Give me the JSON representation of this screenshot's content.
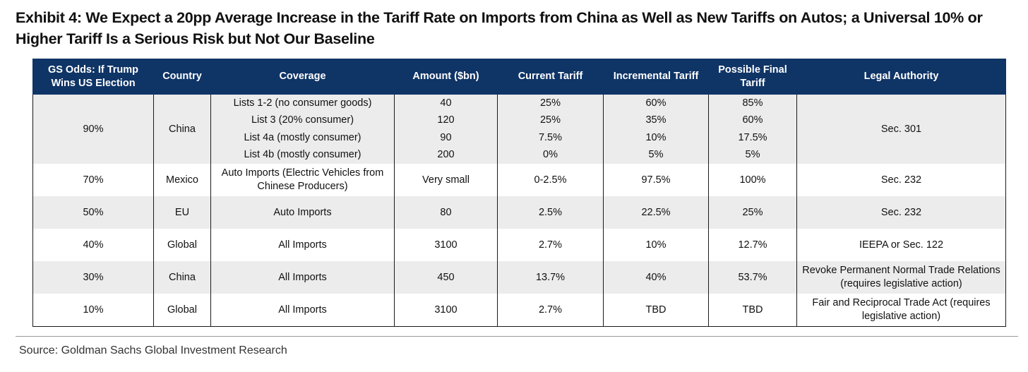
{
  "title": "Exhibit 4: We Expect a 20pp Average Increase in the Tariff Rate on Imports from China as Well as New Tariffs on Autos; a Universal 10% or Higher Tariff Is a Serious Risk but Not Our Baseline",
  "headers": {
    "odds": "GS Odds: If Trump Wins US Election",
    "country": "Country",
    "coverage": "Coverage",
    "amount": "Amount ($bn)",
    "current": "Current Tariff",
    "incremental": "Incremental Tariff",
    "final": "Possible Final Tariff",
    "legal": "Legal Authority"
  },
  "china_group": {
    "odds": "90%",
    "country": "China",
    "legal": "Sec. 301",
    "lists": [
      {
        "coverage": "Lists 1-2 (no consumer goods)",
        "amount": "40",
        "current": "25%",
        "incremental": "60%",
        "final": "85%"
      },
      {
        "coverage": "List 3 (20% consumer)",
        "amount": "120",
        "current": "25%",
        "incremental": "35%",
        "final": "60%"
      },
      {
        "coverage": "List 4a (mostly consumer)",
        "amount": "90",
        "current": "7.5%",
        "incremental": "10%",
        "final": "17.5%"
      },
      {
        "coverage": "List 4b (mostly consumer)",
        "amount": "200",
        "current": "0%",
        "incremental": "5%",
        "final": "5%"
      }
    ]
  },
  "rows": [
    {
      "odds": "70%",
      "country": "Mexico",
      "coverage": "Auto Imports (Electric Vehicles from Chinese Producers)",
      "amount": "Very small",
      "current": "0-2.5%",
      "incremental": "97.5%",
      "final": "100%",
      "legal": "Sec. 232"
    },
    {
      "odds": "50%",
      "country": "EU",
      "coverage": "Auto Imports",
      "amount": "80",
      "current": "2.5%",
      "incremental": "22.5%",
      "final": "25%",
      "legal": "Sec. 232"
    },
    {
      "odds": "40%",
      "country": "Global",
      "coverage": "All Imports",
      "amount": "3100",
      "current": "2.7%",
      "incremental": "10%",
      "final": "12.7%",
      "legal": "IEEPA or Sec. 122"
    },
    {
      "odds": "30%",
      "country": "China",
      "coverage": "All Imports",
      "amount": "450",
      "current": "13.7%",
      "incremental": "40%",
      "final": "53.7%",
      "legal": "Revoke Permanent Normal Trade Relations (requires legislative action)"
    },
    {
      "odds": "10%",
      "country": "Global",
      "coverage": "All Imports",
      "amount": "3100",
      "current": "2.7%",
      "incremental": "TBD",
      "final": "TBD",
      "legal": "Fair and Reciprocal Trade Act (requires legislative action)"
    }
  ],
  "source": "Source: Goldman Sachs Global Investment Research"
}
